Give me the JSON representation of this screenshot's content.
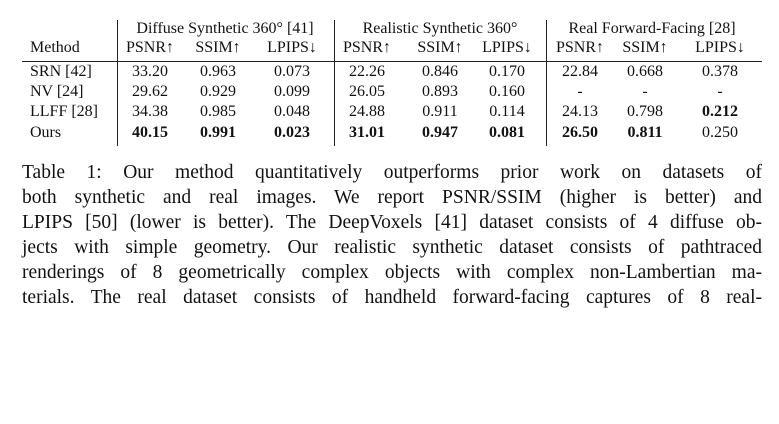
{
  "table": {
    "group_headers": [
      "Diffuse Synthetic 360° [41]",
      "Realistic Synthetic 360°",
      "Real Forward-Facing [28]"
    ],
    "columns": [
      "Method",
      "PSNR↑",
      "SSIM↑",
      "LPIPS↓",
      "PSNR↑",
      "SSIM↑",
      "LPIPS↓",
      "PSNR↑",
      "SSIM↑",
      "LPIPS↓"
    ],
    "rows": [
      [
        "SRN [42]",
        "33.20",
        "0.963",
        "0.073",
        "22.26",
        "0.846",
        "0.170",
        "22.84",
        "0.668",
        "0.378"
      ],
      [
        "NV [24]",
        "29.62",
        "0.929",
        "0.099",
        "26.05",
        "0.893",
        "0.160",
        "-",
        "-",
        "-"
      ],
      [
        "LLFF [28]",
        "34.38",
        "0.985",
        "0.048",
        "24.88",
        "0.911",
        "0.114",
        "24.13",
        "0.798",
        {
          "text": "0.212",
          "bold": true
        }
      ],
      [
        "Ours",
        {
          "text": "40.15",
          "bold": true
        },
        {
          "text": "0.991",
          "bold": true
        },
        {
          "text": "0.023",
          "bold": true
        },
        {
          "text": "31.01",
          "bold": true
        },
        {
          "text": "0.947",
          "bold": true
        },
        {
          "text": "0.081",
          "bold": true
        },
        {
          "text": "26.50",
          "bold": true
        },
        {
          "text": "0.811",
          "bold": true
        },
        "0.250"
      ]
    ]
  },
  "caption": {
    "lines": [
      "Table 1: Our method quantitatively outperforms prior work on datasets of",
      "both synthetic and real images. We report PSNR/SSIM (higher is better) and",
      "LPIPS [50] (lower is better). The DeepVoxels [41] dataset consists of 4 diffuse ob-",
      "jects with simple geometry. Our realistic synthetic dataset consists of pathtraced",
      "renderings of 8 geometrically complex objects with complex non-Lambertian ma-",
      "terials. The real dataset consists of handheld forward-facing captures of 8 real-"
    ]
  }
}
